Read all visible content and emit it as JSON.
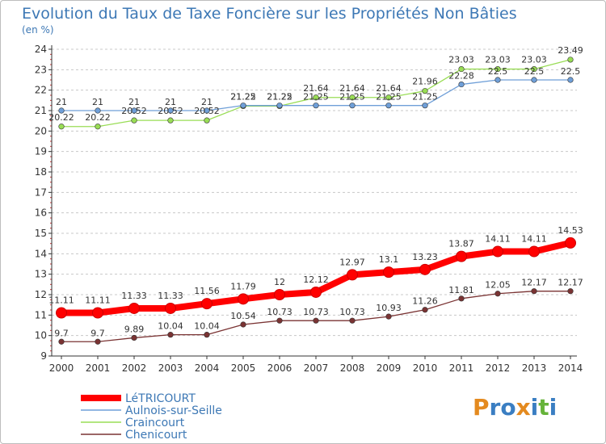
{
  "chart_data": {
    "type": "line",
    "title": "Evolution du Taux de Taxe Foncière sur les Propriétés Non Bâties",
    "subtitle": "(en %)",
    "x": [
      "2000",
      "2001",
      "2002",
      "2003",
      "2004",
      "2005",
      "2006",
      "2007",
      "2008",
      "2009",
      "2010",
      "2011",
      "2012",
      "2013",
      "2014"
    ],
    "ylim": [
      9,
      24
    ],
    "yticks": [
      "9",
      "10",
      "11",
      "12",
      "13",
      "14",
      "15",
      "16",
      "17",
      "18",
      "19",
      "20",
      "21",
      "22",
      "23",
      "24"
    ],
    "grid": "horizontal dashed",
    "legend_placement": "bottom-left",
    "series": [
      {
        "name": "LéTRICOURT",
        "color": "#ff0000",
        "values": [
          11.11,
          11.11,
          11.33,
          11.33,
          11.56,
          11.79,
          12,
          12.12,
          12.97,
          13.1,
          13.23,
          13.87,
          14.11,
          14.11,
          14.53
        ],
        "labels": [
          "11.11",
          "11.11",
          "11.33",
          "11.33",
          "11.56",
          "11.79",
          "12",
          "12.12",
          "12.97",
          "13.1",
          "13.23",
          "13.87",
          "14.11",
          "14.11",
          "14.53"
        ]
      },
      {
        "name": "Aulnois-sur-Seille",
        "color": "#6f9fd8",
        "values": [
          21,
          21,
          21,
          21,
          21,
          21.25,
          21.25,
          21.25,
          21.25,
          21.25,
          21.25,
          22.28,
          22.5,
          22.5,
          22.5
        ],
        "labels": [
          "21",
          "21",
          "21",
          "21",
          "21",
          "21.25",
          "21.25",
          "21.25",
          "21.25",
          "21.25",
          "21.25",
          "22.28",
          "22.5",
          "22.5",
          "22.5"
        ]
      },
      {
        "name": "Craincourt",
        "color": "#99dd55",
        "values": [
          20.22,
          20.22,
          20.52,
          20.52,
          20.52,
          21.22,
          21.22,
          21.64,
          21.64,
          21.64,
          21.96,
          23.03,
          23.03,
          23.03,
          23.49
        ],
        "labels": [
          "20.22",
          "20.22",
          "20.52",
          "20.52",
          "20.52",
          "21.22",
          "21.22",
          "21.64",
          "21.64",
          "21.64",
          "21.96",
          "23.03",
          "23.03",
          "23.03",
          "23.49"
        ]
      },
      {
        "name": "Chenicourt",
        "color": "#7a3333",
        "values": [
          9.7,
          9.7,
          9.89,
          10.04,
          10.04,
          10.54,
          10.73,
          10.73,
          10.73,
          10.93,
          11.26,
          11.81,
          12.05,
          12.17,
          12.17
        ],
        "labels": [
          "9.7",
          "9.7",
          "9.89",
          "10.04",
          "10.04",
          "10.54",
          "10.73",
          "10.73",
          "10.73",
          "10.93",
          "11.26",
          "11.81",
          "12.05",
          "12.17",
          "12.17"
        ]
      }
    ]
  },
  "logo": {
    "text": "Proxiti"
  }
}
